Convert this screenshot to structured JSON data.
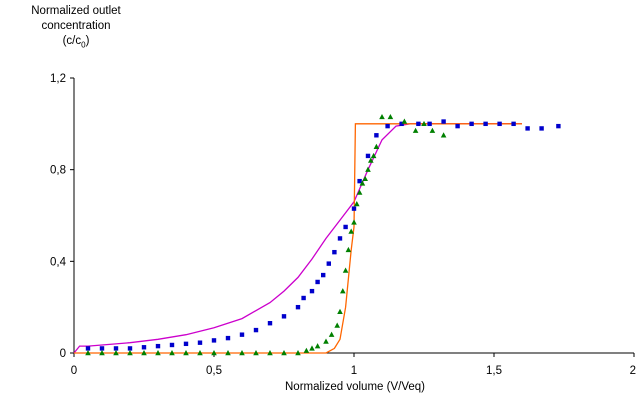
{
  "chart_data": {
    "type": "scatter",
    "ylabel": {
      "line1": "Normalized outlet",
      "line2": "concentration",
      "line3_prefix": "(c/c",
      "line3_sub": "0",
      "line3_suffix": ")"
    },
    "xlabel": "Normalized volume (V/Veq)",
    "xlim": [
      0,
      2
    ],
    "ylim": [
      0,
      1.2
    ],
    "xticks": [
      0,
      0.5,
      1,
      1.5,
      2
    ],
    "xtick_labels": [
      "0",
      "0,5",
      "1",
      "1,5",
      "2"
    ],
    "yticks": [
      0,
      0.4,
      0.8,
      1.2
    ],
    "ytick_labels": [
      "0",
      "0,4",
      "0,8",
      "1,2"
    ],
    "grid": false,
    "series": [
      {
        "kind": "markers",
        "marker": "square",
        "color": "#0000cc",
        "x": [
          0.05,
          0.1,
          0.15,
          0.2,
          0.25,
          0.3,
          0.35,
          0.4,
          0.45,
          0.5,
          0.55,
          0.6,
          0.65,
          0.7,
          0.75,
          0.8,
          0.82,
          0.85,
          0.87,
          0.89,
          0.91,
          0.93,
          0.95,
          0.97,
          1.0,
          1.02,
          1.05,
          1.08,
          1.12,
          1.17,
          1.23,
          1.27,
          1.32,
          1.37,
          1.42,
          1.47,
          1.52,
          1.57,
          1.62,
          1.67,
          1.73
        ],
        "y": [
          0.02,
          0.02,
          0.02,
          0.02,
          0.025,
          0.03,
          0.035,
          0.04,
          0.045,
          0.055,
          0.065,
          0.08,
          0.1,
          0.13,
          0.16,
          0.2,
          0.24,
          0.27,
          0.31,
          0.34,
          0.39,
          0.44,
          0.5,
          0.55,
          0.63,
          0.75,
          0.86,
          0.95,
          0.99,
          1.0,
          1.0,
          1.0,
          1.01,
          0.99,
          1.0,
          1.0,
          1.0,
          1.0,
          0.98,
          0.98,
          0.99
        ]
      },
      {
        "kind": "markers",
        "marker": "triangle",
        "color": "#008000",
        "x": [
          0.05,
          0.1,
          0.15,
          0.2,
          0.25,
          0.3,
          0.35,
          0.4,
          0.45,
          0.5,
          0.55,
          0.6,
          0.65,
          0.7,
          0.75,
          0.8,
          0.83,
          0.85,
          0.87,
          0.9,
          0.92,
          0.94,
          0.95,
          0.96,
          0.97,
          0.98,
          0.99,
          1.0,
          1.01,
          1.02,
          1.03,
          1.04,
          1.05,
          1.06,
          1.07,
          1.08,
          1.1,
          1.13,
          1.18,
          1.22,
          1.25,
          1.28,
          1.32
        ],
        "y": [
          0.0,
          0.0,
          0.0,
          0.0,
          0.0,
          0.0,
          0.0,
          0.0,
          0.0,
          0.0,
          0.0,
          0.0,
          0.0,
          0.0,
          0.0,
          0.0,
          0.01,
          0.02,
          0.03,
          0.05,
          0.08,
          0.12,
          0.18,
          0.27,
          0.36,
          0.45,
          0.53,
          0.57,
          0.65,
          0.7,
          0.74,
          0.76,
          0.8,
          0.84,
          0.86,
          0.9,
          1.03,
          1.03,
          1.01,
          0.97,
          1.0,
          0.97,
          0.95
        ]
      },
      {
        "kind": "line",
        "color": "#cc00cc",
        "x": [
          0.0,
          0.02,
          0.05,
          0.1,
          0.2,
          0.3,
          0.4,
          0.5,
          0.6,
          0.7,
          0.75,
          0.8,
          0.85,
          0.9,
          0.95,
          1.0,
          1.05,
          1.1,
          1.15,
          1.2,
          1.3,
          1.4,
          1.5,
          1.6
        ],
        "y": [
          0.0,
          0.03,
          0.03,
          0.035,
          0.045,
          0.06,
          0.08,
          0.11,
          0.15,
          0.22,
          0.27,
          0.33,
          0.41,
          0.5,
          0.58,
          0.66,
          0.8,
          0.93,
          0.99,
          1.0,
          1.0,
          1.0,
          1.0,
          1.0
        ]
      },
      {
        "kind": "line",
        "color": "#ff6600",
        "x": [
          0.0,
          0.9,
          0.93,
          0.95,
          0.97,
          0.99,
          1.0,
          1.005,
          1.01,
          1.02,
          1.03,
          1.04,
          1.05,
          1.06,
          1.07,
          1.6
        ],
        "y": [
          0.0,
          0.0,
          0.02,
          0.06,
          0.2,
          0.45,
          0.55,
          1.0,
          1.0,
          1.0,
          1.0,
          1.0,
          1.0,
          1.0,
          1.0,
          1.0
        ]
      }
    ]
  }
}
